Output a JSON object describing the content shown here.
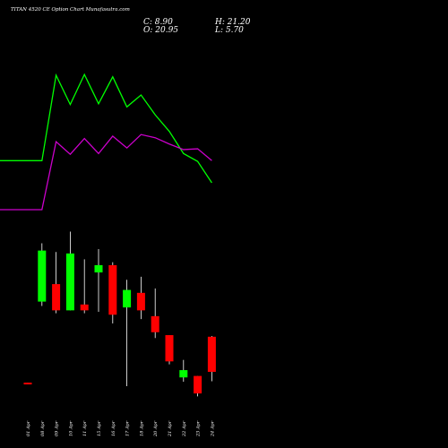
{
  "header": {
    "title": "TITAN 4520 CE Option Chart Munafasutra.com",
    "c_label": "C: 8.90",
    "o_label": "O: 20.95",
    "h_label": "H: 21.20",
    "l_label": "L: 5.70"
  },
  "colors": {
    "background": "#000000",
    "green_line": "#00ff00",
    "magenta_line": "#cc00cc",
    "bull": "#00ff00",
    "bear": "#ff0000",
    "text": "#ffffff"
  },
  "chart_data": {
    "type": "candlestick",
    "categories": [
      "01 Apr",
      "08 Apr",
      "09 Apr",
      "10 Apr",
      "11 Apr",
      "15 Apr",
      "16 Apr",
      "17 Apr",
      "18 Apr",
      "20 Apr",
      "21 Apr",
      "22 Apr",
      "23 Apr",
      "24 Apr"
    ],
    "candles": [
      {
        "date": "01 Apr",
        "open": 5.2,
        "close": 4.6,
        "high": 5.2,
        "low": 4.6
      },
      {
        "date": "08 Apr",
        "open": 33.0,
        "close": 50.5,
        "high": 53.0,
        "low": 31.5
      },
      {
        "date": "09 Apr",
        "open": 39.0,
        "close": 30.0,
        "high": 50.0,
        "low": 29.0
      },
      {
        "date": "10 Apr",
        "open": 30.0,
        "close": 49.5,
        "high": 57.0,
        "low": 30.0
      },
      {
        "date": "11 Apr",
        "open": 32.0,
        "close": 30.0,
        "high": 47.5,
        "low": 29.0
      },
      {
        "date": "15 Apr",
        "open": 43.0,
        "close": 45.5,
        "high": 51.0,
        "low": 29.5
      },
      {
        "date": "16 Apr",
        "open": 45.5,
        "close": 28.5,
        "high": 46.5,
        "low": 25.5
      },
      {
        "date": "17 Apr",
        "open": 31.0,
        "close": 37.0,
        "high": 40.5,
        "low": 4.0
      },
      {
        "date": "18 Apr",
        "open": 36.0,
        "close": 30.0,
        "high": 41.5,
        "low": 27.0
      },
      {
        "date": "20 Apr",
        "open": 28.0,
        "close": 22.5,
        "high": 37.5,
        "low": 20.5
      },
      {
        "date": "21 Apr",
        "open": 21.5,
        "close": 12.5,
        "high": 21.5,
        "low": 11.5
      },
      {
        "date": "22 Apr",
        "open": 7.0,
        "close": 9.5,
        "high": 13.0,
        "low": 5.5
      },
      {
        "date": "23 Apr",
        "open": 7.5,
        "close": 1.5,
        "high": 7.5,
        "low": 0.5
      },
      {
        "date": "24 Apr",
        "open": 20.95,
        "close": 8.9,
        "high": 21.2,
        "low": 5.7
      }
    ],
    "lines": [
      {
        "color": "green",
        "values": [
          122,
          122,
          230,
          193,
          231,
          194,
          228,
          190,
          205,
          180,
          159,
          131,
          121,
          94
        ]
      },
      {
        "color": "magenta",
        "values": [
          60,
          60,
          146,
          130,
          150,
          131,
          153,
          138,
          155,
          151,
          143,
          136,
          137,
          122
        ]
      }
    ]
  }
}
